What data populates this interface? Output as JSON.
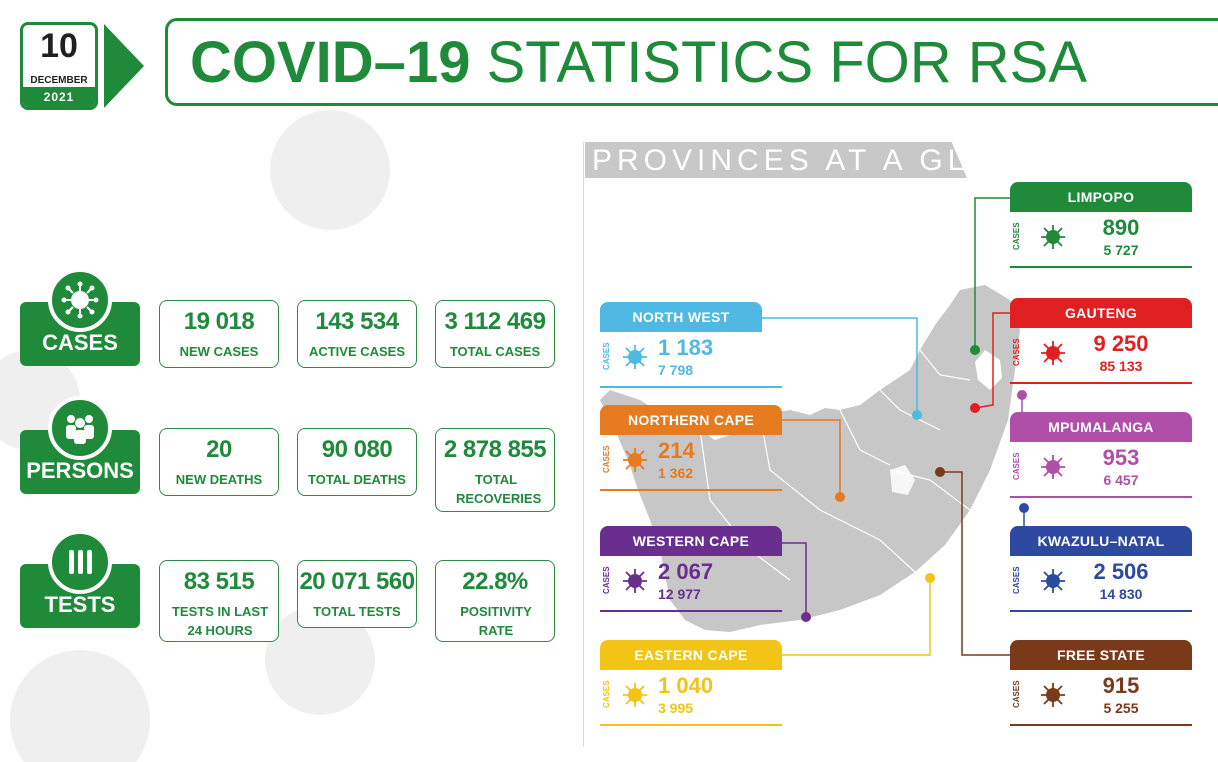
{
  "date": {
    "day": "10",
    "month": "DECEMBER",
    "year": "2021"
  },
  "title": {
    "bold": "COVID–19",
    "normal": "STATISTICS FOR RSA"
  },
  "colors": {
    "brand_green": "#1e8a3a"
  },
  "categories": [
    {
      "label": "CASES",
      "icon": "virus-icon",
      "stats": [
        {
          "value": "19 018",
          "label": "NEW CASES"
        },
        {
          "value": "143 534",
          "label": "ACTIVE CASES"
        },
        {
          "value": "3 112 469",
          "label": "TOTAL CASES"
        }
      ]
    },
    {
      "label": "PERSONS",
      "icon": "people-icon",
      "stats": [
        {
          "value": "20",
          "label": "NEW DEATHS"
        },
        {
          "value": "90 080",
          "label": "TOTAL DEATHS"
        },
        {
          "value": "2 878 855",
          "label": "TOTAL RECOVERIES"
        }
      ]
    },
    {
      "label": "TESTS",
      "icon": "test-tubes-icon",
      "stats": [
        {
          "value": "83 515",
          "label": "TESTS IN LAST 24 HOURS"
        },
        {
          "value": "20 071 560",
          "label": "TOTAL TESTS"
        },
        {
          "value": "22.8%",
          "label": "POSITIVITY RATE"
        }
      ]
    }
  ],
  "provinces_heading": "PROVINCES AT A GLANCE",
  "cases_label": "CASES",
  "provinces": [
    {
      "name": "LIMPOPO",
      "new": "890",
      "total": "5 727",
      "color": "#1e8a3a"
    },
    {
      "name": "GAUTENG",
      "new": "9 250",
      "total": "85 133",
      "color": "#e02020"
    },
    {
      "name": "MPUMALANGA",
      "new": "953",
      "total": "6 457",
      "color": "#b04fa8"
    },
    {
      "name": "KWAZULU–NATAL",
      "new": "2 506",
      "total": "14 830",
      "color": "#2d4aa0"
    },
    {
      "name": "FREE STATE",
      "new": "915",
      "total": "5 255",
      "color": "#7a3a1a"
    },
    {
      "name": "NORTH WEST",
      "new": "1 183",
      "total": "7 798",
      "color": "#4fb9e3"
    },
    {
      "name": "NORTHERN CAPE",
      "new": "214",
      "total": "1 362",
      "color": "#e67a1e"
    },
    {
      "name": "WESTERN CAPE",
      "new": "2 067",
      "total": "12 977",
      "color": "#6a2f8e"
    },
    {
      "name": "EASTERN CAPE",
      "new": "1 040",
      "total": "3 995",
      "color": "#f2c417"
    }
  ]
}
